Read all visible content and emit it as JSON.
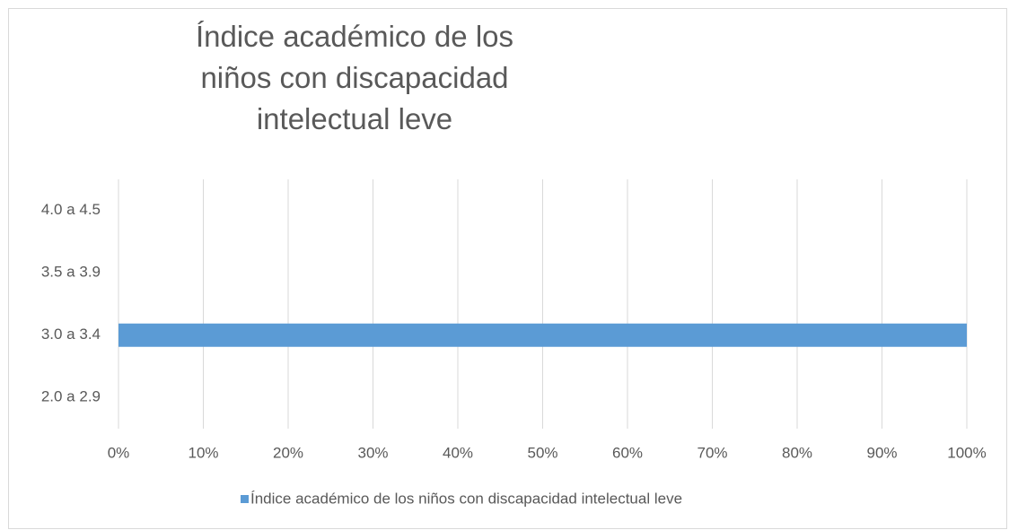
{
  "chart_data": {
    "type": "barh",
    "title": "Índice académico de los niños con discapacidad intelectual leve",
    "categories": [
      "4.0 a 4.5",
      "3.5 a 3.9",
      "3.0 a 3.4",
      "2.0 a 2.9"
    ],
    "series": [
      {
        "name": "Índice académico de los niños con discapacidad intelectual leve",
        "color": "#5b9bd5",
        "values": [
          0,
          0,
          100,
          0
        ]
      }
    ],
    "xlim": [
      0,
      100
    ],
    "xticks": [
      {
        "value": 0,
        "label": "0%"
      },
      {
        "value": 10,
        "label": "10%"
      },
      {
        "value": 20,
        "label": "20%"
      },
      {
        "value": 30,
        "label": "30%"
      },
      {
        "value": 40,
        "label": "40%"
      },
      {
        "value": 50,
        "label": "50%"
      },
      {
        "value": 60,
        "label": "60%"
      },
      {
        "value": 70,
        "label": "70%"
      },
      {
        "value": 80,
        "label": "80%"
      },
      {
        "value": 90,
        "label": "90%"
      },
      {
        "value": 100,
        "label": "100%"
      }
    ],
    "grid": true,
    "legend": "bottom"
  }
}
